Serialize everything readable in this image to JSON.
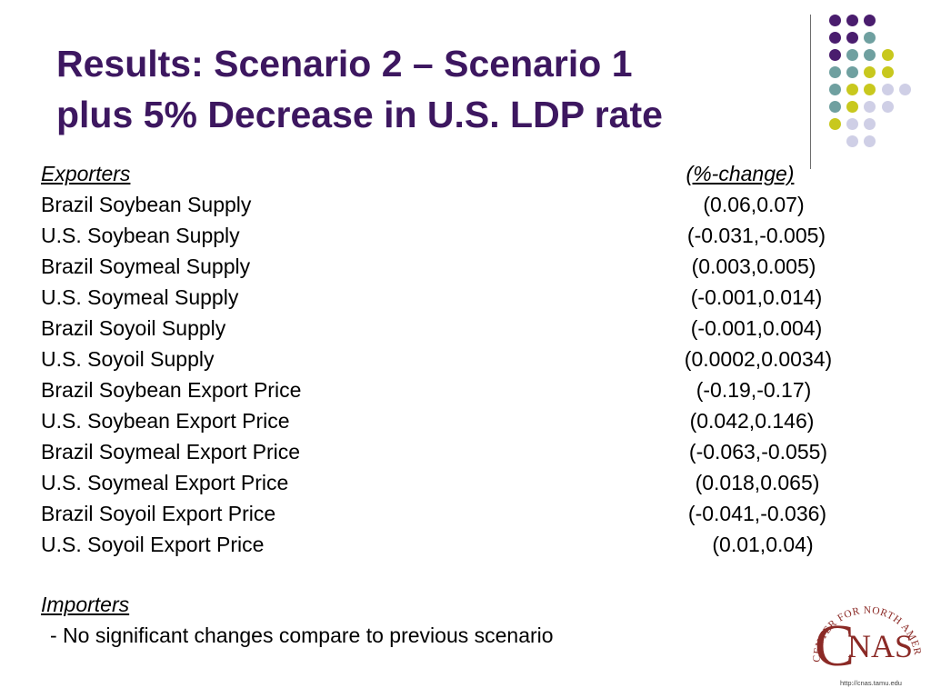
{
  "title": {
    "line1": "Results: Scenario 2 – Scenario 1",
    "line2": "plus 5% Decrease in U.S. LDP rate"
  },
  "exporters": {
    "heading": "Exporters",
    "change_heading": "(%-change)",
    "rows": [
      {
        "label": "Brazil Soybean Supply",
        "value": "(0.06,0.07)"
      },
      {
        "label": "U.S. Soybean Supply",
        "value": "(-0.031,-0.005)"
      },
      {
        "label": "Brazil Soymeal Supply",
        "value": "(0.003,0.005)"
      },
      {
        "label": "U.S. Soymeal Supply",
        "value": "(-0.001,0.014)"
      },
      {
        "label": "Brazil Soyoil Supply",
        "value": "(-0.001,0.004)"
      },
      {
        "label": "U.S. Soyoil Supply",
        "value": "(0.0002,0.0034)"
      },
      {
        "label": "Brazil Soybean Export Price",
        "value": "(-0.19,-0.17)"
      },
      {
        "label": "U.S. Soybean Export Price",
        "value": "(0.042,0.146)"
      },
      {
        "label": "Brazil Soymeal Export Price",
        "value": "(-0.063,-0.055)"
      },
      {
        "label": "U.S. Soymeal Export Price",
        "value": "(0.018,0.065)"
      },
      {
        "label": "Brazil Soyoil Export Price",
        "value": "(-0.041,-0.036)"
      },
      {
        "label": "U.S. Soyoil Export Price",
        "value": "(0.01,0.04)"
      }
    ]
  },
  "importers": {
    "heading": "Importers",
    "note": "- No significant changes compare to previous scenario"
  },
  "logo": {
    "arc_text": "CENTER FOR NORTH AMERICAN STUDIES",
    "letters": "CNAS",
    "url": "http://cnas.tamu.edu"
  },
  "colors": {
    "title": "#3d1760",
    "purple": "#4a1d6e",
    "teal": "#6fa0a0",
    "yellow": "#c8c81e",
    "lavender": "#cfcfe6",
    "logo_red": "#8b2a26"
  }
}
